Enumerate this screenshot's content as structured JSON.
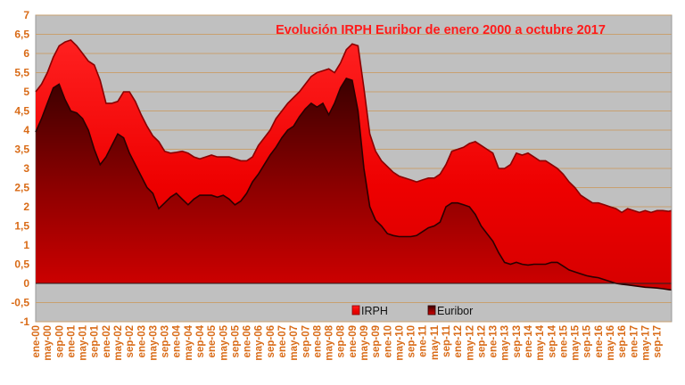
{
  "chart_data": {
    "type": "area",
    "title": "Evolución IRPH Euribor de enero 2000 a octubre 2017",
    "xlabel": "",
    "ylabel": "",
    "ylim": [
      -1,
      7
    ],
    "y_ticks": [
      "-1",
      "-0,5",
      "0",
      "0,5",
      "1",
      "1,5",
      "2",
      "2,5",
      "3",
      "3,5",
      "4",
      "4,5",
      "5",
      "5,5",
      "6",
      "6,5",
      "7"
    ],
    "x_tick_labels": [
      "ene-00",
      "sep-00",
      "may-01",
      "ene-02",
      "sep-02",
      "may-03",
      "ene-04",
      "sep-04",
      "may-05",
      "ene-06",
      "sep-06",
      "may-07",
      "ene-08",
      "sep-08",
      "may-09",
      "ene-10",
      "sep-10",
      "may-11",
      "ene-12",
      "sep-12",
      "may-13",
      "ene-14",
      "sep-14",
      "may-15",
      "ene-16",
      "sep-16",
      "may-17"
    ],
    "x_tick_labels_bottom": [
      "ene-00",
      "may-00",
      "sep-00",
      "ene-01",
      "may-01",
      "sep-01",
      "ene-02",
      "may-02",
      "sep-02",
      "ene-03",
      "may-03",
      "sep-03",
      "ene-04",
      "may-04",
      "sep-04",
      "ene-05",
      "may-05",
      "sep-05",
      "ene-06",
      "may-06",
      "sep-06",
      "ene-07",
      "may-07",
      "sep-07",
      "ene-08",
      "may-08",
      "sep-08",
      "ene-09",
      "may-09",
      "sep-09",
      "ene-10",
      "may-10",
      "sep-10",
      "ene-11",
      "may-11",
      "sep-11",
      "ene-12",
      "may-12",
      "sep-12",
      "ene-13",
      "may-13",
      "sep-13",
      "ene-14",
      "may-14",
      "sep-14",
      "ene-15",
      "may-15",
      "sep-15",
      "ene-16",
      "may-16",
      "sep-16",
      "ene-17",
      "may-17",
      "sep-17"
    ],
    "legend_position": "bottom-center",
    "grid": true,
    "series": [
      {
        "name": "IRPH",
        "color": "#ff1a1a",
        "points": [
          [
            0,
            5.0
          ],
          [
            2,
            5.2
          ],
          [
            4,
            5.5
          ],
          [
            6,
            5.9
          ],
          [
            8,
            6.2
          ],
          [
            10,
            6.3
          ],
          [
            12,
            6.35
          ],
          [
            14,
            6.2
          ],
          [
            16,
            6.0
          ],
          [
            18,
            5.8
          ],
          [
            20,
            5.7
          ],
          [
            22,
            5.3
          ],
          [
            24,
            4.7
          ],
          [
            26,
            4.7
          ],
          [
            28,
            4.75
          ],
          [
            30,
            5.0
          ],
          [
            32,
            5.0
          ],
          [
            34,
            4.75
          ],
          [
            36,
            4.4
          ],
          [
            38,
            4.1
          ],
          [
            40,
            3.85
          ],
          [
            42,
            3.7
          ],
          [
            44,
            3.45
          ],
          [
            46,
            3.4
          ],
          [
            48,
            3.42
          ],
          [
            50,
            3.45
          ],
          [
            52,
            3.4
          ],
          [
            54,
            3.3
          ],
          [
            56,
            3.25
          ],
          [
            58,
            3.3
          ],
          [
            60,
            3.35
          ],
          [
            62,
            3.3
          ],
          [
            64,
            3.3
          ],
          [
            66,
            3.3
          ],
          [
            68,
            3.25
          ],
          [
            70,
            3.2
          ],
          [
            72,
            3.2
          ],
          [
            74,
            3.3
          ],
          [
            76,
            3.6
          ],
          [
            78,
            3.8
          ],
          [
            80,
            4.0
          ],
          [
            82,
            4.3
          ],
          [
            84,
            4.5
          ],
          [
            86,
            4.7
          ],
          [
            88,
            4.85
          ],
          [
            90,
            5.0
          ],
          [
            92,
            5.2
          ],
          [
            94,
            5.4
          ],
          [
            96,
            5.5
          ],
          [
            98,
            5.55
          ],
          [
            100,
            5.6
          ],
          [
            102,
            5.5
          ],
          [
            104,
            5.75
          ],
          [
            106,
            6.1
          ],
          [
            108,
            6.25
          ],
          [
            110,
            6.2
          ],
          [
            112,
            5.1
          ],
          [
            114,
            3.9
          ],
          [
            116,
            3.45
          ],
          [
            118,
            3.2
          ],
          [
            120,
            3.05
          ],
          [
            122,
            2.9
          ],
          [
            124,
            2.8
          ],
          [
            126,
            2.75
          ],
          [
            128,
            2.7
          ],
          [
            130,
            2.65
          ],
          [
            132,
            2.7
          ],
          [
            134,
            2.75
          ],
          [
            136,
            2.75
          ],
          [
            138,
            2.85
          ],
          [
            140,
            3.1
          ],
          [
            142,
            3.45
          ],
          [
            144,
            3.5
          ],
          [
            146,
            3.55
          ],
          [
            148,
            3.65
          ],
          [
            150,
            3.7
          ],
          [
            152,
            3.6
          ],
          [
            154,
            3.5
          ],
          [
            156,
            3.4
          ],
          [
            158,
            3.0
          ],
          [
            160,
            3.0
          ],
          [
            162,
            3.1
          ],
          [
            164,
            3.4
          ],
          [
            166,
            3.35
          ],
          [
            168,
            3.4
          ],
          [
            170,
            3.3
          ],
          [
            172,
            3.2
          ],
          [
            174,
            3.2
          ],
          [
            176,
            3.1
          ],
          [
            178,
            3.0
          ],
          [
            180,
            2.85
          ],
          [
            182,
            2.65
          ],
          [
            184,
            2.5
          ],
          [
            186,
            2.3
          ],
          [
            188,
            2.2
          ],
          [
            190,
            2.1
          ],
          [
            192,
            2.1
          ],
          [
            194,
            2.05
          ],
          [
            196,
            2.0
          ],
          [
            198,
            1.95
          ],
          [
            200,
            1.85
          ],
          [
            202,
            1.95
          ],
          [
            204,
            1.9
          ],
          [
            206,
            1.85
          ],
          [
            208,
            1.9
          ],
          [
            210,
            1.85
          ],
          [
            212,
            1.9
          ],
          [
            214,
            1.9
          ],
          [
            216,
            1.88
          ],
          [
            217,
            1.9
          ]
        ]
      },
      {
        "name": "Euribor",
        "color": "#5a0000",
        "points": [
          [
            0,
            3.95
          ],
          [
            2,
            4.3
          ],
          [
            4,
            4.7
          ],
          [
            6,
            5.1
          ],
          [
            8,
            5.2
          ],
          [
            10,
            4.8
          ],
          [
            12,
            4.5
          ],
          [
            14,
            4.45
          ],
          [
            16,
            4.3
          ],
          [
            18,
            4.0
          ],
          [
            20,
            3.5
          ],
          [
            22,
            3.1
          ],
          [
            24,
            3.3
          ],
          [
            26,
            3.6
          ],
          [
            28,
            3.9
          ],
          [
            30,
            3.8
          ],
          [
            32,
            3.4
          ],
          [
            34,
            3.1
          ],
          [
            36,
            2.8
          ],
          [
            38,
            2.5
          ],
          [
            40,
            2.35
          ],
          [
            42,
            1.95
          ],
          [
            44,
            2.1
          ],
          [
            46,
            2.25
          ],
          [
            48,
            2.35
          ],
          [
            50,
            2.2
          ],
          [
            52,
            2.05
          ],
          [
            54,
            2.2
          ],
          [
            56,
            2.3
          ],
          [
            58,
            2.3
          ],
          [
            60,
            2.3
          ],
          [
            62,
            2.25
          ],
          [
            64,
            2.3
          ],
          [
            66,
            2.2
          ],
          [
            68,
            2.05
          ],
          [
            70,
            2.15
          ],
          [
            72,
            2.35
          ],
          [
            74,
            2.65
          ],
          [
            76,
            2.85
          ],
          [
            78,
            3.1
          ],
          [
            80,
            3.35
          ],
          [
            82,
            3.55
          ],
          [
            84,
            3.8
          ],
          [
            86,
            4.0
          ],
          [
            88,
            4.1
          ],
          [
            90,
            4.35
          ],
          [
            92,
            4.55
          ],
          [
            94,
            4.7
          ],
          [
            96,
            4.6
          ],
          [
            98,
            4.7
          ],
          [
            100,
            4.4
          ],
          [
            102,
            4.7
          ],
          [
            104,
            5.1
          ],
          [
            106,
            5.35
          ],
          [
            108,
            5.3
          ],
          [
            110,
            4.5
          ],
          [
            112,
            3.0
          ],
          [
            114,
            2.0
          ],
          [
            116,
            1.65
          ],
          [
            118,
            1.5
          ],
          [
            120,
            1.3
          ],
          [
            122,
            1.25
          ],
          [
            124,
            1.22
          ],
          [
            126,
            1.22
          ],
          [
            128,
            1.22
          ],
          [
            130,
            1.25
          ],
          [
            132,
            1.35
          ],
          [
            134,
            1.45
          ],
          [
            136,
            1.5
          ],
          [
            138,
            1.6
          ],
          [
            140,
            2.0
          ],
          [
            142,
            2.1
          ],
          [
            144,
            2.1
          ],
          [
            146,
            2.05
          ],
          [
            148,
            2.0
          ],
          [
            150,
            1.8
          ],
          [
            152,
            1.5
          ],
          [
            154,
            1.3
          ],
          [
            156,
            1.1
          ],
          [
            158,
            0.8
          ],
          [
            160,
            0.55
          ],
          [
            162,
            0.5
          ],
          [
            164,
            0.55
          ],
          [
            166,
            0.5
          ],
          [
            168,
            0.48
          ],
          [
            170,
            0.5
          ],
          [
            172,
            0.5
          ],
          [
            174,
            0.5
          ],
          [
            176,
            0.55
          ],
          [
            178,
            0.55
          ],
          [
            180,
            0.45
          ],
          [
            182,
            0.35
          ],
          [
            184,
            0.3
          ],
          [
            186,
            0.25
          ],
          [
            188,
            0.2
          ],
          [
            190,
            0.17
          ],
          [
            192,
            0.15
          ],
          [
            194,
            0.1
          ],
          [
            196,
            0.05
          ],
          [
            198,
            0.0
          ],
          [
            200,
            -0.02
          ],
          [
            202,
            -0.04
          ],
          [
            204,
            -0.06
          ],
          [
            206,
            -0.08
          ],
          [
            208,
            -0.1
          ],
          [
            210,
            -0.11
          ],
          [
            212,
            -0.12
          ],
          [
            214,
            -0.14
          ],
          [
            216,
            -0.16
          ],
          [
            217,
            -0.17
          ]
        ]
      }
    ]
  }
}
